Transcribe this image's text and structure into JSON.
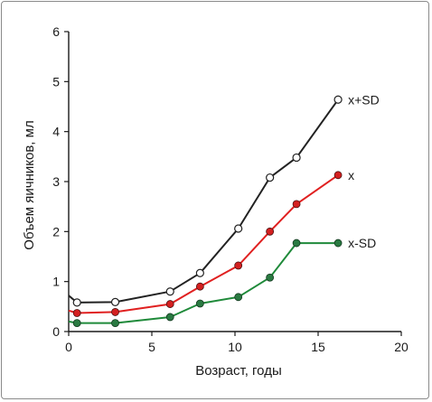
{
  "chart_data": {
    "type": "line",
    "xlabel": "Возраст, годы",
    "ylabel": "Объем яичников, мл",
    "xlim": [
      0,
      20
    ],
    "ylim": [
      0,
      6
    ],
    "xticks": [
      "0",
      "5",
      "10",
      "15",
      "20"
    ],
    "yticks": [
      "0",
      "1",
      "2",
      "3",
      "4",
      "5",
      "6"
    ],
    "grid": false,
    "series": [
      {
        "name": "x+SD",
        "color": "#222222",
        "marker": "open-circle",
        "points": [
          [
            0,
            0.72
          ],
          [
            0.5,
            0.58
          ],
          [
            2.8,
            0.59
          ],
          [
            6.1,
            0.8
          ],
          [
            7.9,
            1.17
          ],
          [
            10.2,
            2.06
          ],
          [
            12.1,
            3.08
          ],
          [
            13.7,
            3.48
          ],
          [
            16.2,
            4.64
          ]
        ]
      },
      {
        "name": "x",
        "color": "#e02020",
        "marker": "red-dot",
        "points": [
          [
            0,
            0.42
          ],
          [
            0.5,
            0.37
          ],
          [
            2.8,
            0.39
          ],
          [
            6.1,
            0.55
          ],
          [
            7.9,
            0.9
          ],
          [
            10.2,
            1.32
          ],
          [
            12.1,
            2.0
          ],
          [
            13.7,
            2.55
          ],
          [
            16.2,
            3.13
          ]
        ]
      },
      {
        "name": "x-SD",
        "color": "#1f8a3a",
        "marker": "green-dot",
        "points": [
          [
            0,
            0.2
          ],
          [
            0.5,
            0.17
          ],
          [
            2.8,
            0.17
          ],
          [
            6.1,
            0.29
          ],
          [
            7.9,
            0.56
          ],
          [
            10.2,
            0.69
          ],
          [
            12.1,
            1.08
          ],
          [
            13.7,
            1.77
          ],
          [
            16.2,
            1.77
          ]
        ]
      }
    ]
  }
}
